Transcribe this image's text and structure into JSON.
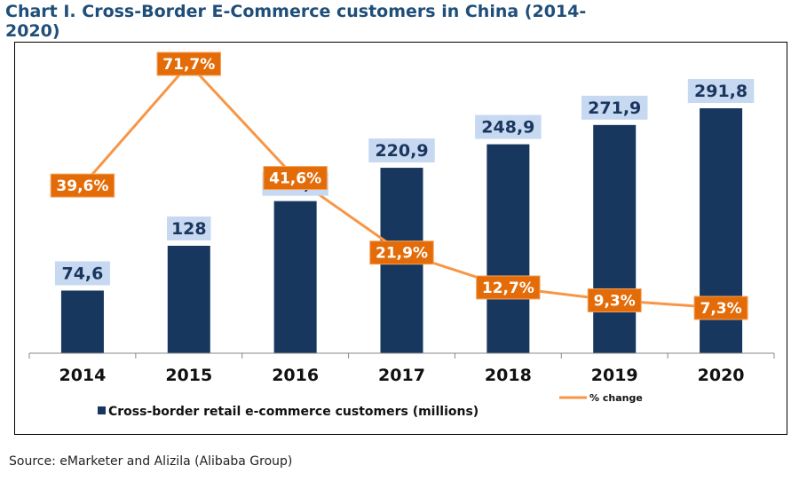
{
  "chart_data": {
    "type": "bar",
    "title": "Chart I. Cross-Border E-Commerce customers in China (2014-2020)",
    "title_lines": [
      "Chart I. Cross-Border E-Commerce customers in China (2014-",
      "2020)"
    ],
    "categories": [
      "2014",
      "2015",
      "2016",
      "2017",
      "2018",
      "2019",
      "2020"
    ],
    "series": [
      {
        "name": "Cross-border retail e-commerce customers (millions)",
        "type": "bar",
        "values": [
          74.6,
          128,
          181.2,
          220.9,
          248.9,
          271.9,
          291.8
        ],
        "labels": [
          "74,6",
          "128",
          "181,2",
          "220,9",
          "248,9",
          "271,9",
          "291,8"
        ],
        "color": "#17375e",
        "label_bg": "#c6d9f1"
      },
      {
        "name": "% change",
        "type": "line",
        "values": [
          39.6,
          71.7,
          41.6,
          21.9,
          12.7,
          9.3,
          7.3
        ],
        "labels": [
          "39,6%",
          "71,7%",
          "41,6%",
          "21,9%",
          "12,7%",
          "9,3%",
          "7,3%"
        ],
        "color": "#f79646",
        "label_bg": "#e36c09"
      }
    ],
    "xlabel": "",
    "ylabel": "",
    "ylim": [
      0,
      320
    ],
    "y2lim": [
      0,
      80
    ],
    "grid": false,
    "legend_position": "bottom"
  },
  "source": "Source: eMarketer and Alizila (Alibaba Group)"
}
